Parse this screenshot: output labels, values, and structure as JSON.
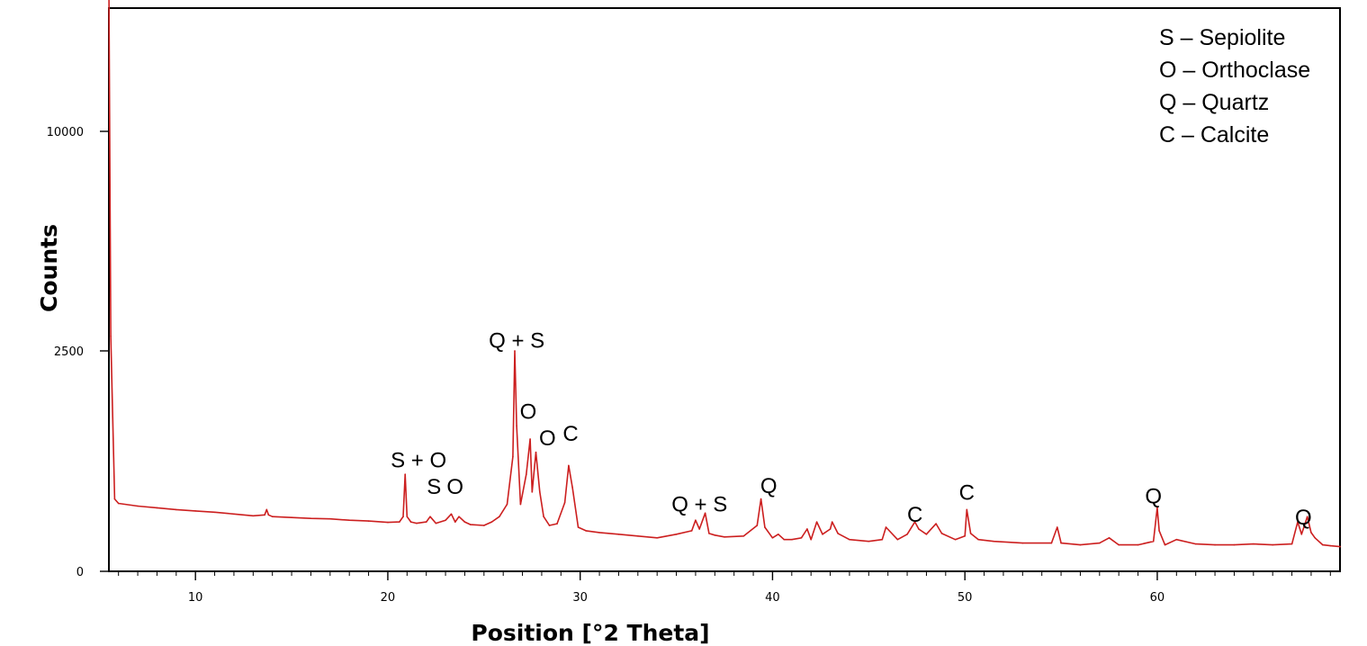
{
  "chart_data": {
    "type": "line",
    "title": "",
    "xlabel": "Position [°2 Theta]",
    "ylabel": "Counts",
    "xlim": [
      5.5,
      69.5
    ],
    "ylim": [
      0,
      11000
    ],
    "x_ticks": [
      10,
      20,
      30,
      40,
      50,
      60
    ],
    "y_ticks": [
      0,
      2500,
      10000
    ],
    "x_tick_labels": [
      "10",
      "20",
      "30",
      "40",
      "50",
      "60"
    ],
    "y_tick_labels": [
      "0",
      "2500",
      "10000"
    ],
    "grid": false,
    "legend_position": "top-right",
    "legend": [
      {
        "label": "S – Sepiolite"
      },
      {
        "label": "O – Orthoclase"
      },
      {
        "label": "Q – Quartz"
      },
      {
        "label": "C – Calcite"
      }
    ],
    "series": [
      {
        "color": "#cc1f1f",
        "x": [
          5.5,
          5.6,
          5.8,
          6.0,
          7.0,
          8.0,
          9.0,
          10.0,
          11.0,
          12.0,
          13.0,
          13.6,
          13.7,
          13.8,
          14.0,
          15.0,
          16.0,
          17.0,
          18.0,
          19.0,
          20.0,
          20.6,
          20.8,
          20.9,
          21.0,
          21.2,
          21.5,
          22.0,
          22.2,
          22.5,
          23.0,
          23.3,
          23.5,
          23.7,
          24.0,
          24.3,
          25.0,
          25.4,
          25.8,
          26.2,
          26.5,
          26.6,
          26.7,
          26.9,
          27.2,
          27.4,
          27.5,
          27.7,
          27.9,
          28.1,
          28.4,
          28.8,
          29.2,
          29.4,
          29.6,
          29.9,
          30.3,
          31.0,
          32.0,
          33.0,
          34.0,
          35.0,
          35.8,
          36.0,
          36.2,
          36.5,
          36.7,
          37.0,
          37.5,
          38.5,
          39.2,
          39.4,
          39.6,
          40.0,
          40.3,
          40.6,
          41.0,
          41.5,
          41.8,
          42.0,
          42.3,
          42.6,
          43.0,
          43.1,
          43.4,
          44.0,
          45.0,
          45.7,
          45.9,
          46.5,
          47.0,
          47.4,
          47.6,
          48.0,
          48.5,
          48.8,
          49.5,
          50.0,
          50.1,
          50.3,
          50.7,
          51.5,
          53.0,
          54.5,
          54.8,
          55.0,
          56.0,
          57.0,
          57.5,
          58.0,
          59.0,
          59.8,
          60.0,
          60.1,
          60.4,
          61.0,
          62.0,
          63.0,
          64.0,
          65.0,
          66.0,
          67.0,
          67.3,
          67.5,
          67.8,
          68.0,
          68.2,
          68.6,
          69.0,
          69.5
        ],
        "y": [
          11200,
          3000,
          820,
          770,
          740,
          720,
          700,
          685,
          670,
          650,
          630,
          640,
          700,
          640,
          620,
          610,
          600,
          595,
          580,
          570,
          555,
          560,
          620,
          1100,
          620,
          560,
          545,
          560,
          620,
          545,
          580,
          650,
          560,
          620,
          560,
          530,
          520,
          560,
          620,
          760,
          1300,
          2500,
          1650,
          760,
          1100,
          1500,
          900,
          1350,
          900,
          620,
          520,
          540,
          780,
          1200,
          950,
          500,
          460,
          440,
          420,
          400,
          380,
          420,
          460,
          580,
          480,
          660,
          430,
          410,
          390,
          400,
          520,
          820,
          500,
          380,
          420,
          360,
          360,
          380,
          480,
          360,
          560,
          420,
          480,
          560,
          430,
          360,
          340,
          360,
          500,
          360,
          420,
          560,
          480,
          420,
          540,
          430,
          360,
          400,
          700,
          430,
          360,
          340,
          320,
          320,
          500,
          320,
          300,
          320,
          380,
          300,
          300,
          340,
          720,
          460,
          300,
          360,
          310,
          300,
          300,
          310,
          300,
          310,
          560,
          420,
          620,
          440,
          380,
          300,
          290,
          280
        ]
      }
    ],
    "annotations": [
      {
        "text": "S + O",
        "x": 21.6,
        "y": 1180
      },
      {
        "text": "S",
        "x": 22.4,
        "y": 880
      },
      {
        "text": "O",
        "x": 23.5,
        "y": 880
      },
      {
        "text": "Q + S",
        "x": 26.7,
        "y": 2600
      },
      {
        "text": "O",
        "x": 27.3,
        "y": 1730
      },
      {
        "text": "O",
        "x": 28.3,
        "y": 1430
      },
      {
        "text": "C",
        "x": 29.5,
        "y": 1480
      },
      {
        "text": "Q + S",
        "x": 36.2,
        "y": 680
      },
      {
        "text": "Q",
        "x": 39.8,
        "y": 890
      },
      {
        "text": "C",
        "x": 47.4,
        "y": 560
      },
      {
        "text": "C",
        "x": 50.1,
        "y": 810
      },
      {
        "text": "Q",
        "x": 59.8,
        "y": 770
      },
      {
        "text": "Q",
        "x": 67.6,
        "y": 530
      }
    ]
  }
}
